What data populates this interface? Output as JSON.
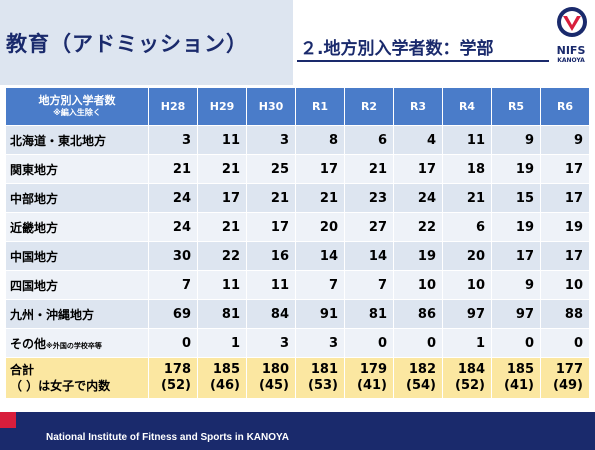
{
  "header": {
    "title": "教育（アドミッション）",
    "subtitle": "２.地方別入学者数：学部",
    "logo_text": "NIFS",
    "logo_small": "KANOYA"
  },
  "table": {
    "corner_label": "地方別入学者数",
    "corner_note": "※編入生除く",
    "columns": [
      "H28",
      "H29",
      "H30",
      "R1",
      "R2",
      "R3",
      "R4",
      "R5",
      "R6"
    ],
    "rows": [
      {
        "label": "北海道・東北地方",
        "note": "",
        "values": [
          "3",
          "11",
          "3",
          "8",
          "6",
          "4",
          "11",
          "9",
          "9"
        ]
      },
      {
        "label": "関東地方",
        "note": "",
        "values": [
          "21",
          "21",
          "25",
          "17",
          "21",
          "17",
          "18",
          "19",
          "17"
        ]
      },
      {
        "label": "中部地方",
        "note": "",
        "values": [
          "24",
          "17",
          "21",
          "21",
          "23",
          "24",
          "21",
          "15",
          "17"
        ]
      },
      {
        "label": "近畿地方",
        "note": "",
        "values": [
          "24",
          "21",
          "17",
          "20",
          "27",
          "22",
          "6",
          "19",
          "19"
        ]
      },
      {
        "label": "中国地方",
        "note": "",
        "values": [
          "30",
          "22",
          "16",
          "14",
          "14",
          "19",
          "20",
          "17",
          "17"
        ]
      },
      {
        "label": "四国地方",
        "note": "",
        "values": [
          "7",
          "11",
          "11",
          "7",
          "7",
          "10",
          "10",
          "9",
          "10"
        ]
      },
      {
        "label": "九州・沖縄地方",
        "note": "",
        "values": [
          "69",
          "81",
          "84",
          "91",
          "81",
          "86",
          "97",
          "97",
          "88"
        ]
      },
      {
        "label": "その他",
        "note": "※外国の学校卒等",
        "values": [
          "0",
          "1",
          "3",
          "3",
          "0",
          "0",
          "1",
          "0",
          "0"
        ]
      }
    ],
    "total": {
      "label": "合計",
      "label2": "（ ）は女子で内数",
      "values": [
        "178",
        "185",
        "180",
        "181",
        "179",
        "182",
        "184",
        "185",
        "177"
      ],
      "female": [
        "(52)",
        "(46)",
        "(45)",
        "(53)",
        "(41)",
        "(54)",
        "(52)",
        "(41)",
        "(49)"
      ]
    }
  },
  "footer": {
    "text": "National Institute of Fitness and Sports in KANOYA"
  },
  "colors": {
    "navy": "#1a2a6c",
    "header_blue": "#4a7cc9",
    "row_light": "#dde5f0",
    "total_yellow": "#fbe7a1",
    "accent_red": "#d81e3c"
  }
}
